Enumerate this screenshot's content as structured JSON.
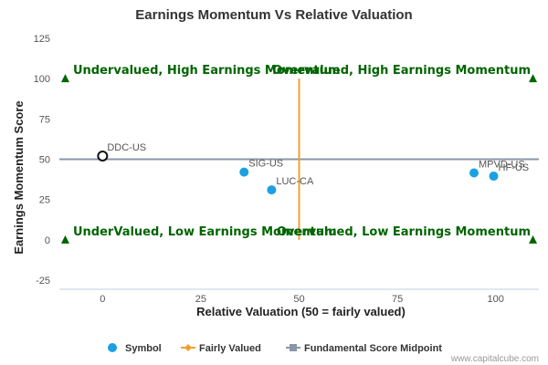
{
  "chart_data": {
    "type": "scatter",
    "title": "Earnings Momentum Vs Relative Valuation",
    "xlabel": "Relative Valuation (50 = fairly valued)",
    "ylabel": "Earnings Momentum Score",
    "xlim": [
      -11,
      111
    ],
    "ylim": [
      -25,
      125
    ],
    "xticks": [
      0,
      25,
      50,
      75,
      100
    ],
    "yticks": [
      -25,
      0,
      25,
      50,
      75,
      100,
      125
    ],
    "grid": false,
    "legend_position": "bottom-center",
    "fairly_valued_x": 50,
    "midpoint_y": 50,
    "quadrant_labels": [
      {
        "text": "Undervalued, High Earnings Momentum",
        "position": "top-left"
      },
      {
        "text": "Overvalued, High Earnings Momentum",
        "position": "top-right"
      },
      {
        "text": "UnderValued, Low Earnings Momentum",
        "position": "bottom-left"
      },
      {
        "text": "Overvalued, Low Earnings Momentum",
        "position": "bottom-right"
      }
    ],
    "points": [
      {
        "label": "DDC-US",
        "x": 0,
        "y": 52,
        "highlight": true
      },
      {
        "label": "SIG-US",
        "x": 36,
        "y": 42,
        "highlight": false
      },
      {
        "label": "LUC-CA",
        "x": 43,
        "y": 31,
        "highlight": false
      },
      {
        "label": "MPVD-US",
        "x": 94.5,
        "y": 41.5,
        "highlight": false
      },
      {
        "label": "HF-US",
        "x": 99.5,
        "y": 39.5,
        "highlight": false
      }
    ],
    "legend": [
      {
        "name": "Symbol",
        "marker": "circle"
      },
      {
        "name": "Fairly Valued",
        "marker": "diamond-line"
      },
      {
        "name": "Fundamental Score Midpoint",
        "marker": "square-line"
      }
    ],
    "colors": {
      "symbol": "#1ba1e2",
      "fairly_valued": "#f0a030",
      "midpoint": "#8a97a8",
      "quadrant_text": "#006400",
      "corner_marker": "#006400"
    }
  },
  "credit": "www.capitalcube.com"
}
